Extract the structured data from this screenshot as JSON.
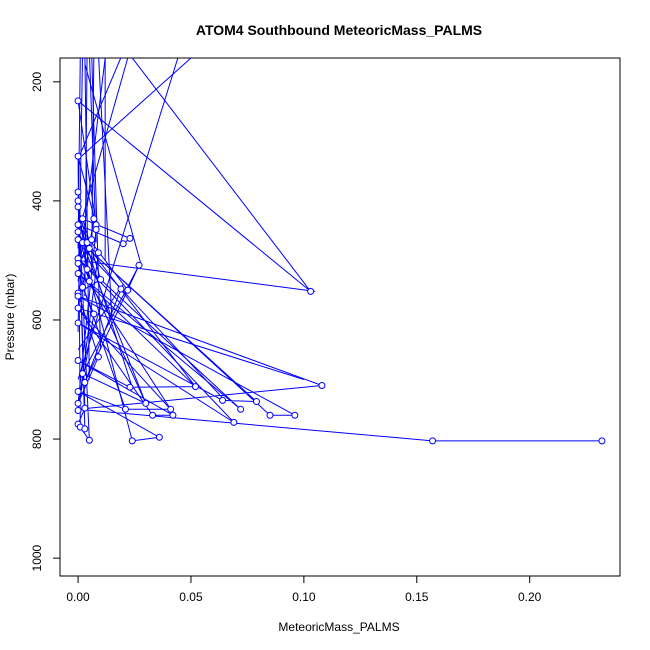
{
  "chart_data": {
    "type": "line",
    "title": "ATOM4 Southbound MeteoricMass_PALMS",
    "xlabel": "MeteoricMass_PALMS",
    "ylabel": "Pressure (mbar)",
    "xlim": [
      -0.008,
      0.24
    ],
    "ylim": [
      1030,
      160
    ],
    "y_inverted": true,
    "x_ticks": [
      0.0,
      0.05,
      0.1,
      0.15,
      0.2
    ],
    "x_tick_labels": [
      "0.00",
      "0.05",
      "0.10",
      "0.15",
      "0.20"
    ],
    "y_ticks": [
      200,
      400,
      600,
      800,
      1000
    ],
    "y_tick_labels": [
      "200",
      "400",
      "600",
      "800",
      "1000"
    ],
    "grid": false,
    "legend": "none",
    "series_color": "#0000ff",
    "marker": "open-circle",
    "points": [
      [
        0.0,
        232
      ],
      [
        0.0,
        325
      ],
      [
        0.0,
        385
      ],
      [
        0.0,
        400
      ],
      [
        0.0,
        410
      ],
      [
        0.0,
        440
      ],
      [
        0.0,
        452
      ],
      [
        0.0,
        465
      ],
      [
        0.0,
        497
      ],
      [
        0.0,
        505
      ],
      [
        0.0,
        522
      ],
      [
        0.0,
        555
      ],
      [
        0.0,
        560
      ],
      [
        0.0,
        580
      ],
      [
        0.0,
        605
      ],
      [
        0.0,
        668
      ],
      [
        0.0,
        720
      ],
      [
        0.0,
        740
      ],
      [
        0.0,
        752
      ],
      [
        0.0,
        775
      ],
      [
        0.001,
        780
      ],
      [
        0.002,
        430
      ],
      [
        0.002,
        470
      ],
      [
        0.002,
        545
      ],
      [
        0.002,
        690
      ],
      [
        0.003,
        705
      ],
      [
        0.003,
        783
      ],
      [
        0.003,
        748
      ],
      [
        0.004,
        470
      ],
      [
        0.004,
        515
      ],
      [
        0.005,
        480
      ],
      [
        0.005,
        535
      ],
      [
        0.005,
        802
      ],
      [
        0.006,
        465
      ],
      [
        0.007,
        430
      ],
      [
        0.007,
        590
      ],
      [
        0.008,
        440
      ],
      [
        0.008,
        448
      ],
      [
        0.009,
        487
      ],
      [
        0.009,
        662
      ],
      [
        0.01,
        532
      ],
      [
        0.019,
        548
      ],
      [
        0.02,
        472
      ],
      [
        0.021,
        750
      ],
      [
        0.022,
        550
      ],
      [
        0.023,
        463
      ],
      [
        0.023,
        713
      ],
      [
        0.024,
        803
      ],
      [
        0.027,
        508
      ],
      [
        0.03,
        740
      ],
      [
        0.033,
        760
      ],
      [
        0.036,
        797
      ],
      [
        0.041,
        750
      ],
      [
        0.042,
        760
      ],
      [
        0.052,
        712
      ],
      [
        0.064,
        735
      ],
      [
        0.069,
        772
      ],
      [
        0.072,
        750
      ],
      [
        0.079,
        737
      ],
      [
        0.085,
        760
      ],
      [
        0.096,
        760
      ],
      [
        0.103,
        552
      ],
      [
        0.108,
        710
      ],
      [
        0.157,
        803
      ],
      [
        0.232,
        803
      ]
    ],
    "path": [
      [
        0.232,
        803
      ],
      [
        0.157,
        803
      ],
      [
        0.0,
        750
      ],
      [
        0.108,
        710
      ],
      [
        0.0,
        560
      ],
      [
        0.096,
        760
      ],
      [
        0.085,
        760
      ],
      [
        0.0,
        465
      ],
      [
        0.079,
        737
      ],
      [
        0.064,
        735
      ],
      [
        0.0,
        605
      ],
      [
        0.069,
        772
      ],
      [
        0.0,
        497
      ],
      [
        0.072,
        750
      ],
      [
        0.0,
        522
      ],
      [
        0.052,
        712
      ],
      [
        0.023,
        713
      ],
      [
        0.0,
        668
      ],
      [
        0.042,
        760
      ],
      [
        0.033,
        760
      ],
      [
        0.0,
        580
      ],
      [
        0.041,
        750
      ],
      [
        0.021,
        750
      ],
      [
        0.0,
        720
      ],
      [
        0.036,
        797
      ],
      [
        0.024,
        803
      ],
      [
        0.0,
        452
      ],
      [
        0.03,
        740
      ],
      [
        0.002,
        690
      ],
      [
        0.027,
        508
      ],
      [
        0.003,
        705
      ],
      [
        0.019,
        548
      ],
      [
        0.022,
        550
      ],
      [
        0.0,
        440
      ],
      [
        0.02,
        472
      ],
      [
        0.023,
        463
      ],
      [
        0.002,
        430
      ],
      [
        0.01,
        532
      ],
      [
        0.0,
        555
      ],
      [
        0.009,
        662
      ],
      [
        0.0,
        740
      ],
      [
        0.008,
        448
      ],
      [
        0.007,
        430
      ],
      [
        0.002,
        545
      ],
      [
        0.007,
        590
      ],
      [
        0.0,
        752
      ],
      [
        0.009,
        487
      ],
      [
        0.005,
        480
      ],
      [
        0.0,
        505
      ],
      [
        0.006,
        465
      ],
      [
        0.004,
        470
      ],
      [
        0.0,
        410
      ],
      [
        0.005,
        535
      ],
      [
        0.004,
        515
      ],
      [
        0.0,
        400
      ],
      [
        0.003,
        748
      ],
      [
        0.0,
        775
      ],
      [
        0.005,
        802
      ],
      [
        0.0,
        385
      ],
      [
        0.003,
        783
      ],
      [
        0.001,
        780
      ],
      [
        0.0,
        325
      ],
      [
        0.008,
        440
      ],
      [
        0.0,
        232
      ],
      [
        0.103,
        552
      ]
    ],
    "extra_segments": [
      [
        [
          0.103,
          552
        ],
        [
          0.022,
          150
        ]
      ],
      [
        [
          0.0,
          330
        ],
        [
          0.02,
          150
        ]
      ],
      [
        [
          0.0,
          700
        ],
        [
          0.045,
          150
        ]
      ],
      [
        [
          0.005,
          700
        ],
        [
          0.003,
          150
        ]
      ],
      [
        [
          0.01,
          650
        ],
        [
          0.006,
          150
        ]
      ],
      [
        [
          0.015,
          600
        ],
        [
          0.009,
          150
        ]
      ],
      [
        [
          0.012,
          500
        ],
        [
          0.012,
          150
        ]
      ],
      [
        [
          0.0,
          620
        ],
        [
          0.002,
          150
        ]
      ],
      [
        [
          0.003,
          560
        ],
        [
          0.004,
          150
        ]
      ],
      [
        [
          0.006,
          520
        ],
        [
          0.007,
          150
        ]
      ],
      [
        [
          0.008,
          470
        ],
        [
          0.005,
          150
        ]
      ],
      [
        [
          0.0,
          480
        ],
        [
          0.001,
          150
        ]
      ],
      [
        [
          0.021,
          750
        ],
        [
          0.0,
          520
        ]
      ],
      [
        [
          0.03,
          740
        ],
        [
          0.0,
          490
        ]
      ],
      [
        [
          0.065,
          735
        ],
        [
          0.0,
          470
        ]
      ],
      [
        [
          0.052,
          712
        ],
        [
          0.0,
          455
        ]
      ],
      [
        [
          0.041,
          750
        ],
        [
          0.0,
          510
        ]
      ],
      [
        [
          0.024,
          713
        ],
        [
          0.0,
          430
        ]
      ],
      [
        [
          0.0,
          650
        ],
        [
          0.02,
          540
        ]
      ],
      [
        [
          0.1,
          700
        ],
        [
          0.0,
          580
        ]
      ],
      [
        [
          0.05,
          160
        ],
        [
          0.0,
          330
        ]
      ],
      [
        [
          0.105,
          552
        ],
        [
          0.0,
          500
        ]
      ],
      [
        [
          0.0,
          455
        ],
        [
          0.022,
          160
        ]
      ],
      [
        [
          0.028,
          508
        ],
        [
          0.003,
          170
        ]
      ],
      [
        [
          0.0,
          535
        ],
        [
          0.012,
          160
        ]
      ]
    ]
  }
}
